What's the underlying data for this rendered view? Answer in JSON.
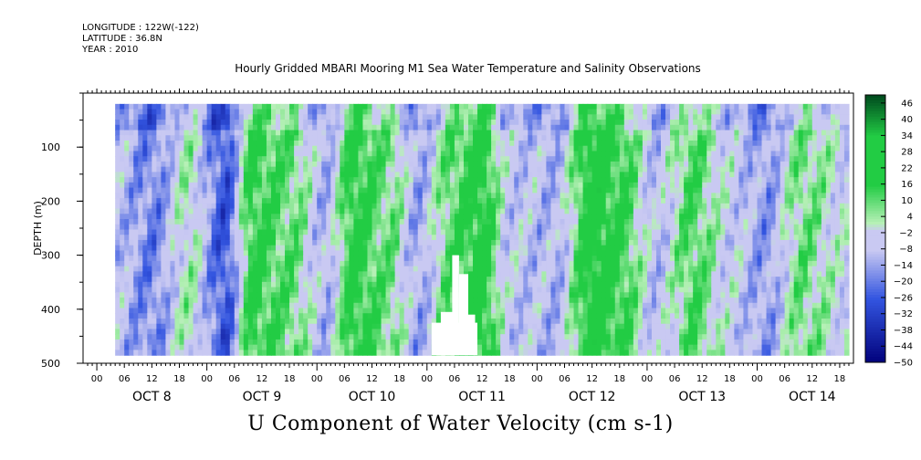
{
  "meta": {
    "longitude": "LONGITUDE : 122W(-122)",
    "latitude": "LATITUDE : 36.8N",
    "year": "YEAR : 2010"
  },
  "chart_data": {
    "type": "heatmap",
    "title": "Hourly Gridded MBARI Mooring M1 Sea Water Temperature and Salinity Observations",
    "variable_title": "U Component of Water Velocity (cm s-1)",
    "ylabel": "DEPTH (m)",
    "ylim": [
      500,
      0
    ],
    "y_ticks": [
      100,
      200,
      300,
      400,
      500
    ],
    "data_depth_range": [
      20,
      485
    ],
    "x_hour_ticks": [
      "00",
      "06",
      "12",
      "18",
      "00",
      "06",
      "12",
      "18",
      "00",
      "06",
      "12",
      "18",
      "00",
      "06",
      "12",
      "18",
      "00",
      "06",
      "12",
      "18",
      "00",
      "06",
      "12",
      "18",
      "00",
      "06",
      "12",
      "18"
    ],
    "x_day_labels": [
      "OCT  8",
      "OCT  9",
      "OCT 10",
      "OCT 11",
      "OCT 12",
      "OCT 13",
      "OCT 14"
    ],
    "x_range_hours": [
      -3,
      165
    ],
    "data_time_range_hours": [
      4,
      164
    ],
    "colorbar": {
      "labels": [
        46,
        40,
        34,
        28,
        22,
        16,
        10,
        4,
        -2,
        -8,
        -14,
        -20,
        -26,
        -32,
        -38,
        -44,
        -50
      ],
      "min": -50,
      "max": 49,
      "colors": {
        "dark_green": "#004d1f",
        "green": "#22cc44",
        "light_green": "#b6f0b6",
        "light_blue": "#c9c9f2",
        "blue": "#3355e0",
        "dark_navy": "#00007a"
      }
    },
    "field_profile_by_day": [
      {
        "hour": 4,
        "value": -8
      },
      {
        "hour": 12,
        "value": -18
      },
      {
        "hour": 20,
        "value": 2
      },
      {
        "hour": 28,
        "value": -26
      },
      {
        "hour": 34,
        "value": 16
      },
      {
        "hour": 42,
        "value": 10
      },
      {
        "hour": 50,
        "value": -10
      },
      {
        "hour": 56,
        "value": 18
      },
      {
        "hour": 64,
        "value": 8
      },
      {
        "hour": 70,
        "value": -12
      },
      {
        "hour": 78,
        "value": 12
      },
      {
        "hour": 84,
        "value": 20
      },
      {
        "hour": 90,
        "value": -6
      },
      {
        "hour": 100,
        "value": -10
      },
      {
        "hour": 108,
        "value": 22
      },
      {
        "hour": 114,
        "value": 16
      },
      {
        "hour": 122,
        "value": -8
      },
      {
        "hour": 130,
        "value": 12
      },
      {
        "hour": 138,
        "value": -4
      },
      {
        "hour": 146,
        "value": -14
      },
      {
        "hour": 154,
        "value": 8
      },
      {
        "hour": 164,
        "value": -4
      }
    ]
  }
}
